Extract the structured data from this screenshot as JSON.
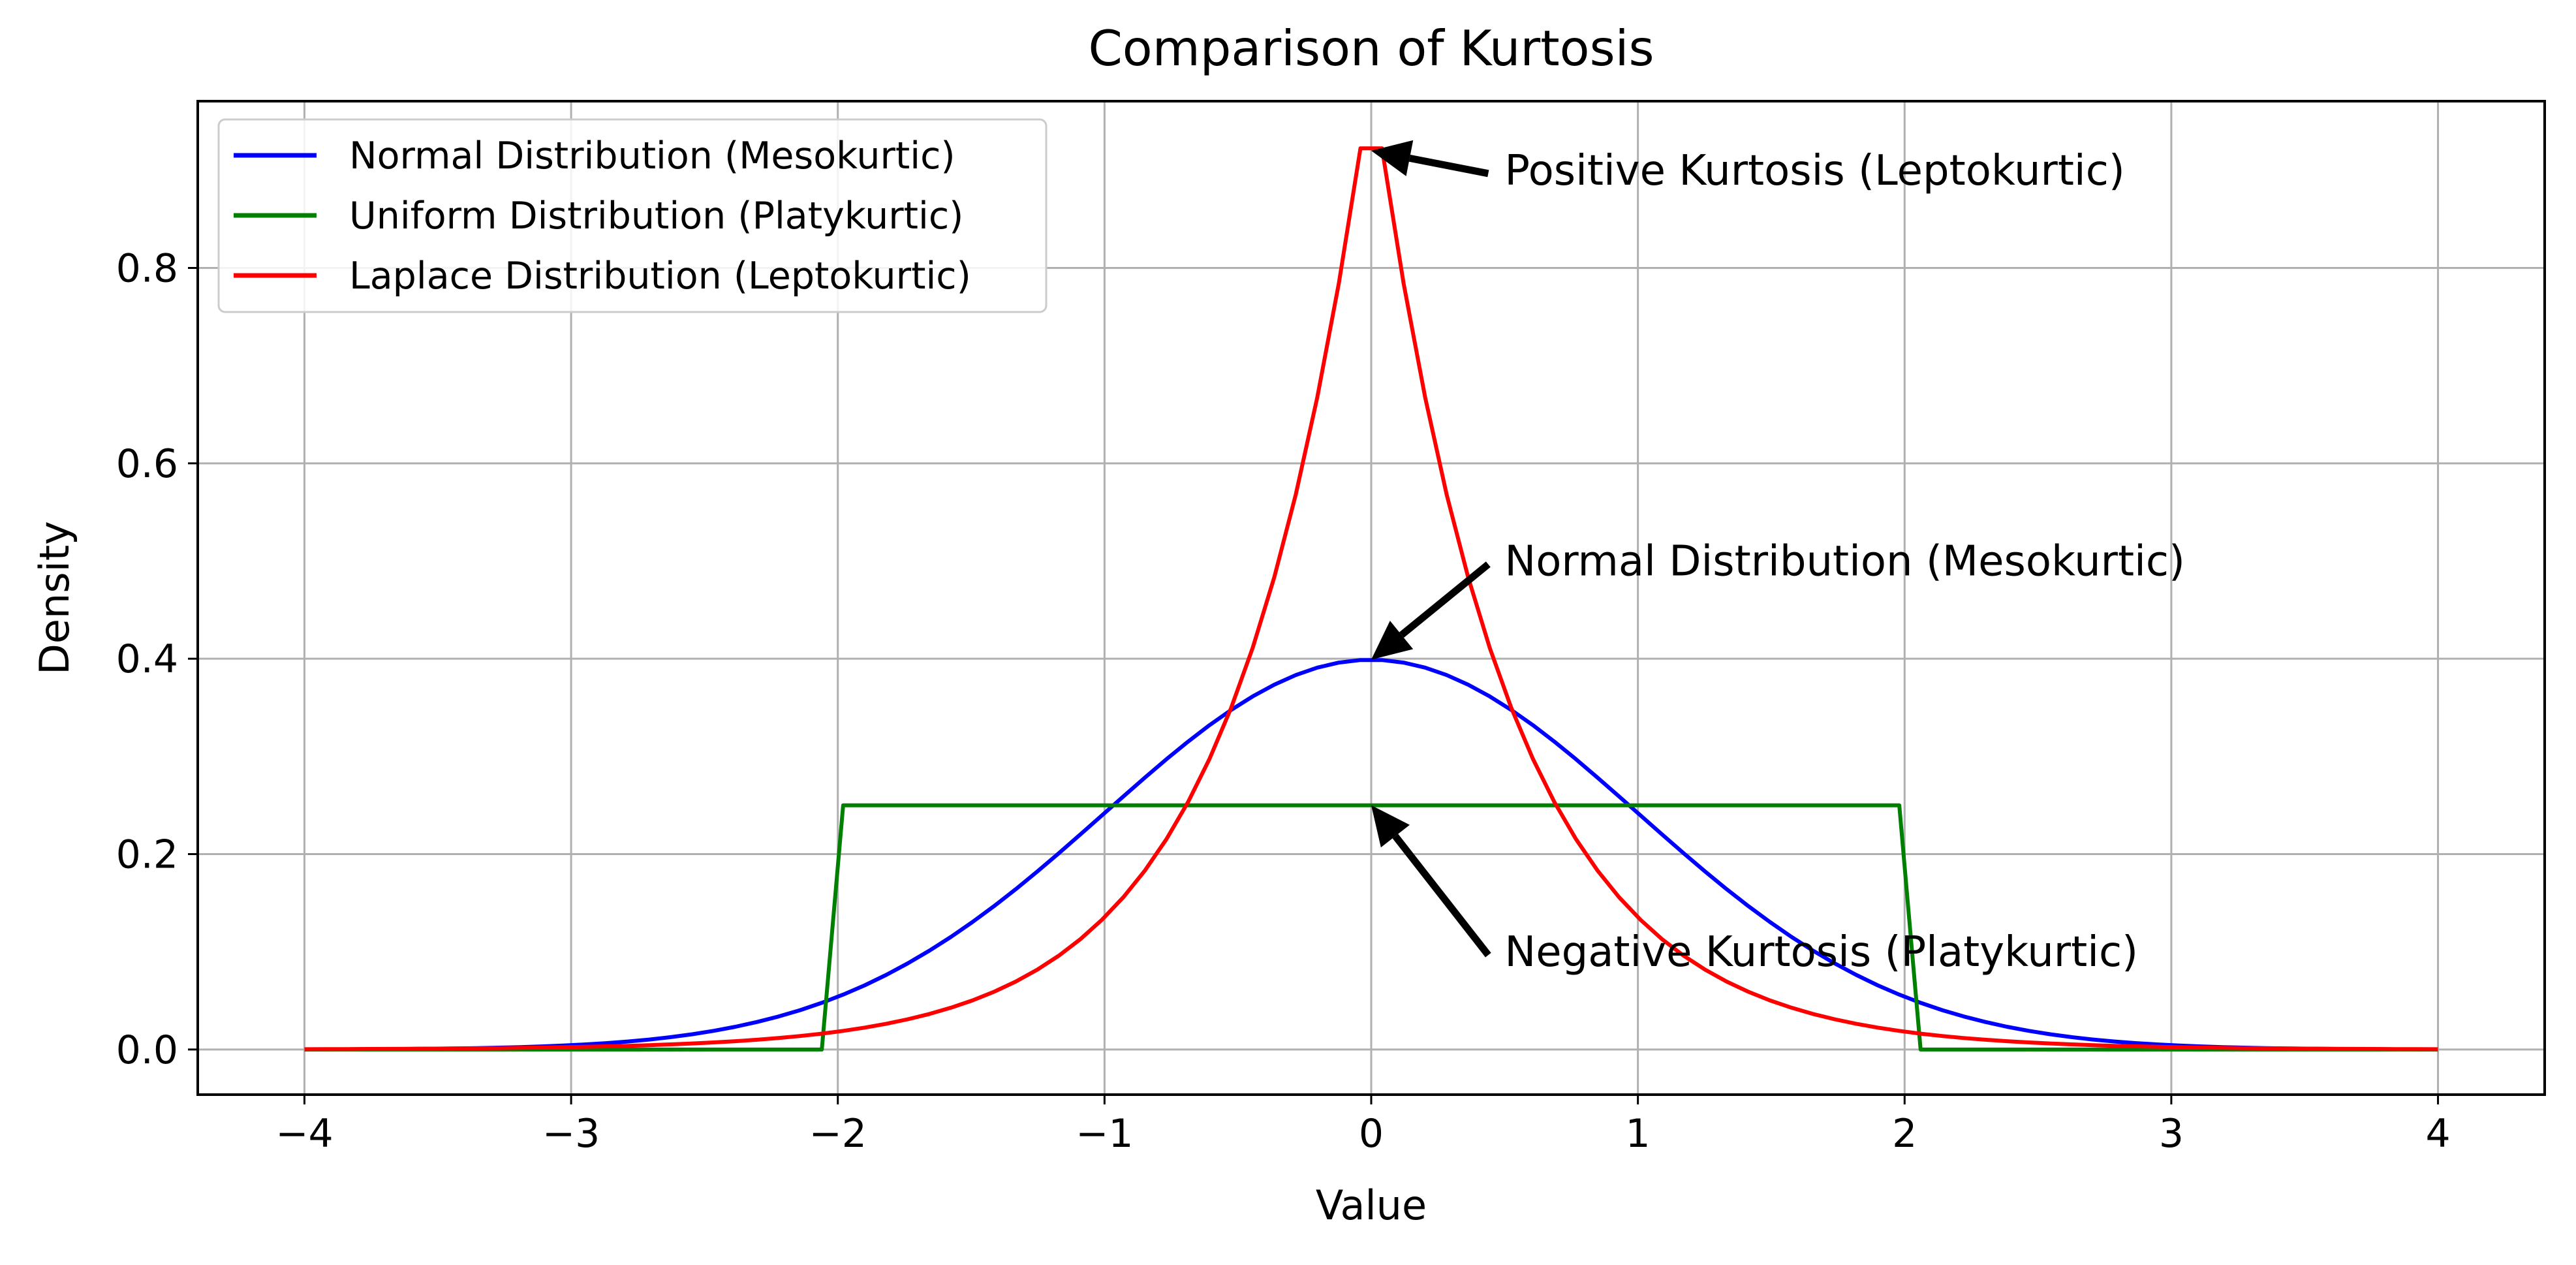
{
  "chart_data": {
    "type": "line",
    "title": "Comparison of Kurtosis",
    "xlabel": "Value",
    "ylabel": "Density",
    "xlim": [
      -4.4,
      4.4
    ],
    "ylim": [
      -0.0462,
      0.9707
    ],
    "grid": true,
    "legend_position": "upper-left",
    "x_ticks": [
      -4,
      -3,
      -2,
      -1,
      0,
      1,
      2,
      3,
      4
    ],
    "x_tick_labels": [
      "−4",
      "−3",
      "−2",
      "−1",
      "0",
      "1",
      "2",
      "3",
      "4"
    ],
    "y_ticks": [
      0.0,
      0.2,
      0.4,
      0.6,
      0.8
    ],
    "y_tick_labels": [
      "0.0",
      "0.2",
      "0.4",
      "0.6",
      "0.8"
    ],
    "series": [
      {
        "name": "Normal Distribution (Mesokurtic)",
        "color": "#0000ff",
        "function": "normal_pdf",
        "params": {
          "mu": 0,
          "sigma": 1
        },
        "x_range": [
          -4,
          4
        ],
        "peak": [
          0,
          0.399
        ]
      },
      {
        "name": "Uniform Distribution (Platykurtic)",
        "color": "#008000",
        "function": "uniform_pdf",
        "params": {
          "a": -2,
          "b": 2
        },
        "x_range": [
          -4,
          4
        ],
        "peak": [
          0,
          0.25
        ],
        "points": [
          [
            -4,
            0
          ],
          [
            -2.06,
            0
          ],
          [
            -1.98,
            0.25
          ],
          [
            1.98,
            0.25
          ],
          [
            2.06,
            0
          ],
          [
            4,
            0
          ]
        ]
      },
      {
        "name": "Laplace Distribution (Leptokurtic)",
        "color": "#ff0000",
        "function": "laplace_pdf",
        "params": {
          "mu": 0,
          "b": 0.5
        },
        "x_range": [
          -4,
          4
        ],
        "peak": [
          0,
          0.92
        ]
      }
    ],
    "annotations": [
      {
        "text": "Positive Kurtosis (Leptokurtic)",
        "xy": [
          0,
          0.92
        ],
        "xytext": [
          0.5,
          0.9
        ]
      },
      {
        "text": "Normal Distribution (Mesokurtic)",
        "xy": [
          0,
          0.399
        ],
        "xytext": [
          0.5,
          0.5
        ]
      },
      {
        "text": "Negative Kurtosis (Platykurtic)",
        "xy": [
          0,
          0.25
        ],
        "xytext": [
          0.5,
          0.1
        ]
      }
    ]
  }
}
